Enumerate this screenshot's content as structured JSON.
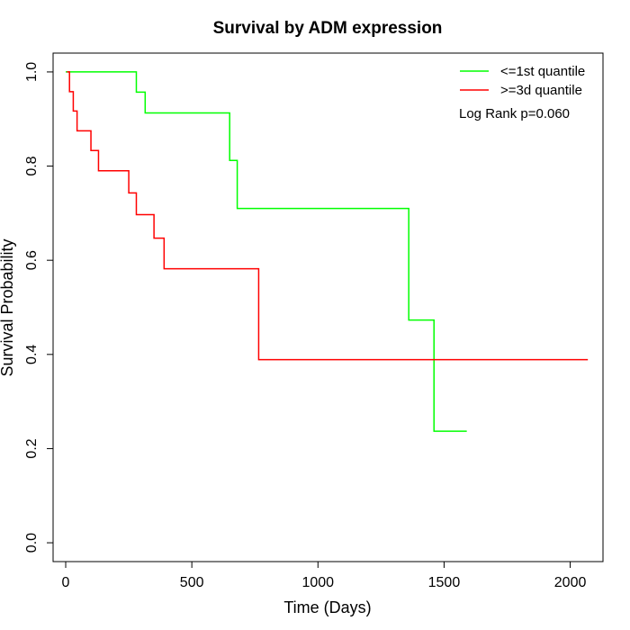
{
  "chart_data": {
    "type": "line",
    "title": "Survival by ADM expression",
    "xlabel": "Time (Days)",
    "ylabel": "Survival Probability",
    "xlim": [
      -50,
      2130
    ],
    "ylim": [
      -0.04,
      1.04
    ],
    "x_ticks": [
      0,
      500,
      1000,
      1500,
      2000
    ],
    "y_ticks": [
      0.0,
      0.2,
      0.4,
      0.6,
      0.8,
      1.0
    ],
    "x_tick_labels": [
      "0",
      "500",
      "1000",
      "1500",
      "2000"
    ],
    "y_tick_labels": [
      "0.0",
      "0.2",
      "0.4",
      "0.6",
      "0.8",
      "1.0"
    ],
    "grid": false,
    "legend_position": "top-right",
    "annotation": "Log Rank p=0.060",
    "series": [
      {
        "name": "<=1st quantile",
        "color": "#00ff00",
        "step": true,
        "x": [
          0,
          280,
          315,
          650,
          680,
          1360,
          1460,
          1590
        ],
        "y": [
          1.0,
          0.957,
          0.913,
          0.812,
          0.71,
          0.473,
          0.237,
          0.237
        ]
      },
      {
        "name": ">=3d quantile",
        "color": "#ff0000",
        "step": true,
        "x": [
          5,
          15,
          30,
          45,
          100,
          130,
          250,
          280,
          350,
          390,
          765,
          2070
        ],
        "y": [
          1.0,
          0.958,
          0.917,
          0.875,
          0.833,
          0.79,
          0.743,
          0.697,
          0.647,
          0.582,
          0.389,
          0.389
        ]
      }
    ]
  }
}
